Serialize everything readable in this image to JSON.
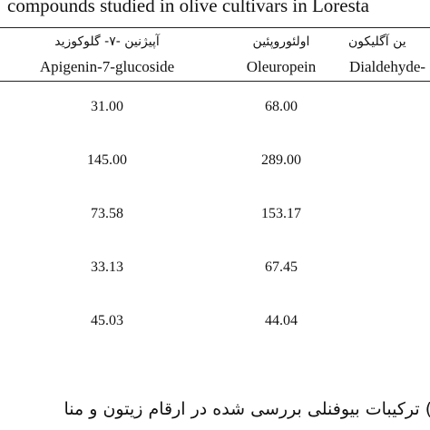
{
  "header": {
    "title": "compounds studied in olive cultivars in Loresta"
  },
  "table": {
    "columns": [
      {
        "fa": "آپیژنین -۷- گلوکوزید",
        "en": "Apigenin-7-glucoside"
      },
      {
        "fa": "اولئوروپئین",
        "en": "Oleuropein"
      },
      {
        "fa": "ین آگلیکون",
        "en": "Dialdehyde-"
      }
    ],
    "rows": [
      [
        "31.00",
        "68.00"
      ],
      [
        "145.00",
        "289.00"
      ],
      [
        "73.58",
        "153.17"
      ],
      [
        "33.13",
        "67.45"
      ],
      [
        "45.03",
        "44.04"
      ]
    ]
  },
  "caption": "ت) ترکیبات بیوفنلی بررسی شده در ارقام زیتون و منا"
}
